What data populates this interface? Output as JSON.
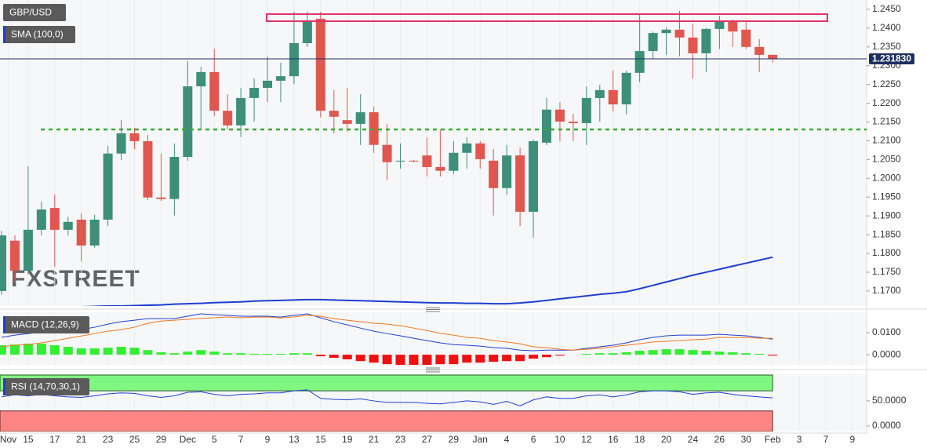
{
  "chart_data": [
    {
      "type": "candlestick",
      "title": "GBP/USD",
      "watermark": "FXSTREET",
      "xlim": [
        -0.118,
        65.07
      ],
      "xticks": [
        {
          "value": 0.5,
          "label": "Nov"
        },
        {
          "value": 2,
          "label": "15"
        },
        {
          "value": 4,
          "label": "17"
        },
        {
          "value": 6,
          "label": "21"
        },
        {
          "value": 8,
          "label": "23"
        },
        {
          "value": 10,
          "label": "25"
        },
        {
          "value": 12,
          "label": "29"
        },
        {
          "value": 14,
          "label": "Dec"
        },
        {
          "value": 16,
          "label": "5"
        },
        {
          "value": 18,
          "label": "7"
        },
        {
          "value": 20,
          "label": "9"
        },
        {
          "value": 22,
          "label": "13"
        },
        {
          "value": 24,
          "label": "15"
        },
        {
          "value": 26,
          "label": "19"
        },
        {
          "value": 28,
          "label": "21"
        },
        {
          "value": 30,
          "label": "23"
        },
        {
          "value": 32,
          "label": "27"
        },
        {
          "value": 34,
          "label": "29"
        },
        {
          "value": 36,
          "label": "Jan"
        },
        {
          "value": 38,
          "label": "4"
        },
        {
          "value": 40,
          "label": "6"
        },
        {
          "value": 42,
          "label": "10"
        },
        {
          "value": 44,
          "label": "12"
        },
        {
          "value": 46,
          "label": "16"
        },
        {
          "value": 48,
          "label": "18"
        },
        {
          "value": 50,
          "label": "20"
        },
        {
          "value": 52,
          "label": "24"
        },
        {
          "value": 54,
          "label": "26"
        },
        {
          "value": 56,
          "label": "30"
        },
        {
          "value": 58,
          "label": "Feb"
        },
        {
          "value": 60,
          "label": "3"
        },
        {
          "value": 62,
          "label": "7"
        },
        {
          "value": 64,
          "label": "9"
        }
      ],
      "ylim": [
        1.166,
        1.2475
      ],
      "yticks": [
        {
          "value": 1.245,
          "label": "1.2450"
        },
        {
          "value": 1.24,
          "label": "1.2400"
        },
        {
          "value": 1.235,
          "label": "1.2350"
        },
        {
          "value": 1.23,
          "label": "1.2300"
        },
        {
          "value": 1.225,
          "label": "1.2250"
        },
        {
          "value": 1.22,
          "label": "1.2200"
        },
        {
          "value": 1.215,
          "label": "1.2150"
        },
        {
          "value": 1.21,
          "label": "1.2100"
        },
        {
          "value": 1.205,
          "label": "1.2050"
        },
        {
          "value": 1.2,
          "label": "1.2000"
        },
        {
          "value": 1.195,
          "label": "1.1950"
        },
        {
          "value": 1.19,
          "label": "1.1900"
        },
        {
          "value": 1.185,
          "label": "1.1850"
        },
        {
          "value": 1.18,
          "label": "1.1800"
        },
        {
          "value": 1.175,
          "label": "1.1750"
        },
        {
          "value": 1.17,
          "label": "1.1700"
        }
      ],
      "grid": true,
      "up_color": "#3d8f79",
      "down_color": "#e0574f",
      "open": [
        1.17,
        1.1834,
        1.1754,
        1.1863,
        1.1921,
        1.1863,
        1.189,
        1.1821,
        1.189,
        1.2066,
        1.212,
        1.2099,
        1.1949,
        1.1945,
        1.2057,
        1.2245,
        1.2283,
        1.218,
        1.2141,
        1.2214,
        1.2241,
        1.226,
        1.2272,
        1.236,
        1.2425,
        1.218,
        1.2155,
        1.2145,
        1.2176,
        1.2089,
        1.2045,
        1.2047,
        1.2061,
        1.203,
        1.202,
        1.2068,
        1.2093,
        1.2047,
        1.1974,
        1.2061,
        1.1911,
        1.2095,
        1.2183,
        1.2151,
        1.2147,
        1.2214,
        1.2235,
        1.2197,
        1.2281,
        1.2339,
        1.2387,
        1.2396,
        1.2375,
        1.2333,
        1.2398,
        1.2417,
        1.2396,
        1.235,
        1.2329
      ],
      "high": [
        1.186,
        1.1848,
        1.2032,
        1.1938,
        1.1957,
        1.1898,
        1.1907,
        1.1903,
        1.2086,
        1.2155,
        1.2135,
        1.2116,
        1.2066,
        1.2093,
        1.2312,
        1.2297,
        1.2345,
        1.2224,
        1.2241,
        1.2266,
        1.2325,
        1.2308,
        1.2444,
        1.2444,
        1.2444,
        1.2235,
        1.2241,
        1.2224,
        1.2191,
        1.2145,
        1.2093,
        1.2049,
        1.2109,
        1.213,
        1.2099,
        1.2109,
        1.2099,
        1.2078,
        1.2089,
        1.2082,
        1.2103,
        1.2214,
        1.2203,
        1.2172,
        1.2245,
        1.2249,
        1.2287,
        1.2287,
        1.2437,
        1.2391,
        1.2402,
        1.2446,
        1.2412,
        1.24,
        1.2433,
        1.2423,
        1.2417,
        1.2371,
        1.2329
      ],
      "low": [
        1.169,
        1.1723,
        1.1744,
        1.1848,
        1.1765,
        1.1848,
        1.1779,
        1.1815,
        1.1873,
        1.2049,
        1.2078,
        1.1942,
        1.194,
        1.1901,
        1.2047,
        1.213,
        1.2166,
        1.213,
        1.211,
        1.2151,
        1.2203,
        1.2203,
        1.2251,
        1.235,
        1.2162,
        1.212,
        1.2124,
        1.2089,
        1.2068,
        1.1995,
        1.2026,
        1.2043,
        1.2005,
        1.2005,
        1.2011,
        1.2026,
        1.2026,
        1.1901,
        1.1957,
        1.1873,
        1.1842,
        1.2089,
        1.2099,
        1.2099,
        1.2089,
        1.2151,
        1.2178,
        1.217,
        1.2256,
        1.2318,
        1.2329,
        1.2325,
        1.2266,
        1.2283,
        1.2345,
        1.235,
        1.2345,
        1.2283,
        1.2308
      ],
      "close": [
        1.1848,
        1.1754,
        1.1863,
        1.1917,
        1.1863,
        1.1884,
        1.1821,
        1.189,
        1.2066,
        1.212,
        1.2099,
        1.1949,
        1.1945,
        1.2057,
        1.2245,
        1.2283,
        1.218,
        1.2141,
        1.2214,
        1.2241,
        1.226,
        1.2272,
        1.236,
        1.2421,
        1.218,
        1.2164,
        1.2145,
        1.2176,
        1.2089,
        1.2043,
        1.2047,
        1.2045,
        1.203,
        1.202,
        1.2068,
        1.2093,
        1.2051,
        1.1974,
        1.2061,
        1.1911,
        1.2099,
        1.2183,
        1.2151,
        1.2147,
        1.2214,
        1.2235,
        1.2197,
        1.2281,
        1.2339,
        1.2387,
        1.2396,
        1.2375,
        1.2333,
        1.2398,
        1.2417,
        1.2391,
        1.235,
        1.2329,
        1.2318
      ],
      "series": [
        {
          "name": "SMA (100,0)",
          "color": "#1f3fcf",
          "values": [
            1.1655,
            1.1656,
            1.1656,
            1.1657,
            1.1657,
            1.1658,
            1.1658,
            1.1659,
            1.166,
            1.166,
            1.1661,
            1.1662,
            1.1663,
            1.1665,
            1.1666,
            1.1667,
            1.1669,
            1.167,
            1.1671,
            1.1673,
            1.1674,
            1.1675,
            1.1676,
            1.1677,
            1.1677,
            1.1676,
            1.1675,
            1.1674,
            1.1673,
            1.1672,
            1.1671,
            1.167,
            1.1669,
            1.1668,
            1.1668,
            1.1667,
            1.1667,
            1.1666,
            1.1666,
            1.1668,
            1.1671,
            1.1675,
            1.1679,
            1.1683,
            1.1687,
            1.1691,
            1.1694,
            1.1698,
            1.1706,
            1.1715,
            1.1724,
            1.1733,
            1.1742,
            1.175,
            1.1758,
            1.1766,
            1.1774,
            1.1782,
            1.179
          ]
        }
      ],
      "current_price": {
        "value": 1.23183,
        "label": "1.231830"
      },
      "current_color": "#1c2f5e"
    },
    {
      "type": "macd",
      "title": "MACD (12,26,9)",
      "ylim": [
        -0.0046,
        0.0193
      ],
      "yticks": [
        {
          "value": 0.01,
          "label": "0.0100"
        },
        {
          "value": 0,
          "label": "0.0000"
        }
      ],
      "positive_color": "#33ee33",
      "negative_color": "#ee1111",
      "histogram": [
        0.0043,
        0.0046,
        0.005,
        0.005,
        0.0043,
        0.0036,
        0.0029,
        0.0029,
        0.0032,
        0.0036,
        0.0032,
        0.0021,
        0.0011,
        0.0007,
        0.0014,
        0.0021,
        0.0014,
        0.0007,
        0.0007,
        0.0004,
        0.0004,
        0.0004,
        0.0007,
        0.0007,
        -0.0007,
        -0.0014,
        -0.0021,
        -0.0029,
        -0.0036,
        -0.0043,
        -0.0046,
        -0.0046,
        -0.0046,
        -0.0043,
        -0.0043,
        -0.0036,
        -0.0036,
        -0.0032,
        -0.0029,
        -0.0029,
        -0.0018,
        -0.0011,
        -0.0004,
        0.0,
        0.0004,
        0.0007,
        0.0007,
        0.0011,
        0.0018,
        0.0021,
        0.0025,
        0.0025,
        0.0021,
        0.0018,
        0.0014,
        0.0011,
        0.0007,
        0.0004,
        -0.0004
      ],
      "series": [
        {
          "color": "#2040d0",
          "values": [
            0.0079,
            0.0089,
            0.0096,
            0.0104,
            0.0107,
            0.0111,
            0.0114,
            0.0125,
            0.0139,
            0.015,
            0.0157,
            0.0164,
            0.0164,
            0.0164,
            0.0175,
            0.0186,
            0.0182,
            0.0179,
            0.0175,
            0.0175,
            0.0175,
            0.0171,
            0.0179,
            0.0186,
            0.0168,
            0.015,
            0.0136,
            0.0121,
            0.0107,
            0.0096,
            0.0086,
            0.0075,
            0.0064,
            0.0054,
            0.0046,
            0.0043,
            0.0039,
            0.0032,
            0.0029,
            0.0021,
            0.0018,
            0.0021,
            0.0021,
            0.0021,
            0.0029,
            0.0036,
            0.0043,
            0.0054,
            0.0068,
            0.0079,
            0.0086,
            0.0089,
            0.0089,
            0.0089,
            0.0093,
            0.0089,
            0.0086,
            0.0079,
            0.0071
          ]
        },
        {
          "color": "#f07820",
          "values": [
            0.0036,
            0.0043,
            0.0046,
            0.0054,
            0.0064,
            0.0075,
            0.0085,
            0.0096,
            0.0107,
            0.0114,
            0.0125,
            0.0143,
            0.0153,
            0.0157,
            0.0161,
            0.0165,
            0.0168,
            0.0172,
            0.0168,
            0.0171,
            0.0171,
            0.0167,
            0.0172,
            0.0179,
            0.0175,
            0.0164,
            0.0157,
            0.015,
            0.0143,
            0.0139,
            0.0132,
            0.0121,
            0.011,
            0.0097,
            0.0089,
            0.0079,
            0.0075,
            0.0064,
            0.0058,
            0.005,
            0.0036,
            0.0032,
            0.0025,
            0.0021,
            0.0025,
            0.0029,
            0.0036,
            0.0043,
            0.005,
            0.0058,
            0.0061,
            0.0064,
            0.0068,
            0.0071,
            0.0079,
            0.0078,
            0.0079,
            0.0075,
            0.0075
          ]
        }
      ]
    },
    {
      "type": "rsi",
      "title": "RSI (14,70,30,1)",
      "ylim": [
        -11,
        103
      ],
      "yticks": [
        {
          "value": 50,
          "label": "50.0000"
        },
        {
          "value": 0,
          "label": "0.0000"
        }
      ],
      "levels": [
        70,
        30
      ],
      "upper_color": "#80f780",
      "lower_color": "#ff8585",
      "series": [
        {
          "color": "#2040d0",
          "values": [
            58,
            62,
            60,
            63,
            60,
            58,
            57,
            60,
            64,
            66,
            65,
            60,
            57,
            60,
            67,
            68,
            63,
            60,
            63,
            64,
            66,
            66,
            70,
            72,
            55,
            53,
            52,
            54,
            50,
            47,
            47,
            47,
            45,
            44,
            47,
            50,
            48,
            43,
            49,
            40,
            52,
            58,
            55,
            55,
            60,
            62,
            58,
            62,
            68,
            70,
            70,
            68,
            63,
            66,
            67,
            63,
            60,
            58,
            56
          ]
        }
      ]
    }
  ]
}
